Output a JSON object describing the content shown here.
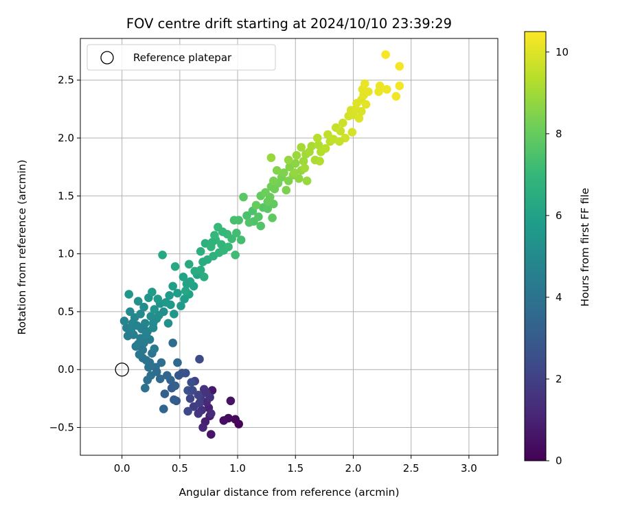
{
  "chart_data": {
    "type": "scatter",
    "title": "FOV centre drift starting at 2024/10/10 23:39:29",
    "xlabel": "Angular distance from reference (arcmin)",
    "ylabel": "Rotation from reference (arcmin)",
    "xlim": [
      -0.36,
      3.25
    ],
    "ylim": [
      -0.74,
      2.86
    ],
    "xticks": [
      0.0,
      0.5,
      1.0,
      1.5,
      2.0,
      2.5,
      3.0
    ],
    "xtick_labels": [
      "0.0",
      "0.5",
      "1.0",
      "1.5",
      "2.0",
      "2.5",
      "3.0"
    ],
    "yticks": [
      -0.5,
      0.0,
      0.5,
      1.0,
      1.5,
      2.0,
      2.5
    ],
    "ytick_labels": [
      "−0.5",
      "0.0",
      "0.5",
      "1.0",
      "1.5",
      "2.0",
      "2.5"
    ],
    "grid": true,
    "legend": {
      "position": "top-left",
      "entries": [
        {
          "label": "Reference platepar",
          "marker": "open-circle",
          "color": "#000000"
        }
      ]
    },
    "reference_point": {
      "x": 0.0,
      "y": 0.0
    },
    "colorbar": {
      "label": "Hours from first FF file",
      "colormap": "viridis",
      "range": [
        0,
        10.5
      ],
      "ticks": [
        0,
        2,
        4,
        6,
        8,
        10
      ],
      "tick_labels": [
        "0",
        "2",
        "4",
        "6",
        "8",
        "10"
      ]
    },
    "series": [
      {
        "color_by": "hours",
        "points": [
          [
            1.01,
            -0.47,
            0.1
          ],
          [
            0.98,
            -0.43,
            0.2
          ],
          [
            0.92,
            -0.42,
            0.3
          ],
          [
            0.88,
            -0.44,
            0.4
          ],
          [
            0.94,
            -0.27,
            0.5
          ],
          [
            0.77,
            -0.56,
            0.6
          ],
          [
            0.78,
            -0.18,
            0.7
          ],
          [
            0.76,
            -0.4,
            0.8
          ],
          [
            0.72,
            -0.45,
            0.9
          ],
          [
            0.75,
            -0.33,
            1.0
          ],
          [
            0.7,
            -0.5,
            1.1
          ],
          [
            0.73,
            -0.28,
            1.2
          ],
          [
            0.77,
            -0.38,
            1.3
          ],
          [
            0.69,
            -0.35,
            1.4
          ],
          [
            0.76,
            -0.24,
            1.5
          ],
          [
            0.71,
            -0.17,
            1.6
          ],
          [
            0.66,
            -0.38,
            1.7
          ],
          [
            0.68,
            -0.24,
            1.8
          ],
          [
            0.62,
            -0.32,
            1.9
          ],
          [
            0.63,
            -0.1,
            2.0
          ],
          [
            0.66,
            -0.22,
            2.1
          ],
          [
            0.59,
            -0.25,
            2.2
          ],
          [
            0.57,
            -0.36,
            2.3
          ],
          [
            0.67,
            0.09,
            2.4
          ],
          [
            0.6,
            -0.11,
            2.5
          ],
          [
            0.55,
            -0.03,
            2.6
          ],
          [
            0.57,
            -0.18,
            2.7
          ],
          [
            0.49,
            -0.05,
            2.8
          ],
          [
            0.47,
            -0.27,
            2.9
          ],
          [
            0.43,
            -0.16,
            3.0
          ],
          [
            0.45,
            -0.26,
            3.1
          ],
          [
            0.37,
            -0.21,
            3.2
          ],
          [
            0.42,
            -0.09,
            3.3
          ],
          [
            0.36,
            -0.34,
            3.4
          ],
          [
            0.48,
            0.06,
            3.5
          ],
          [
            0.33,
            -0.08,
            3.6
          ],
          [
            0.44,
            0.23,
            3.7
          ],
          [
            0.29,
            0.02,
            3.75
          ],
          [
            0.34,
            0.06,
            3.8
          ],
          [
            0.22,
            -0.09,
            3.85
          ],
          [
            0.25,
            -0.05,
            3.9
          ],
          [
            0.2,
            -0.16,
            3.95
          ],
          [
            0.23,
            0.02,
            4.0
          ],
          [
            0.18,
            0.1,
            4.05
          ],
          [
            0.26,
            0.14,
            4.1
          ],
          [
            0.21,
            0.08,
            4.15
          ],
          [
            0.15,
            0.13,
            4.2
          ],
          [
            0.28,
            0.18,
            4.25
          ],
          [
            0.12,
            0.2,
            4.3
          ],
          [
            0.24,
            0.26,
            4.35
          ],
          [
            0.19,
            0.23,
            4.4
          ],
          [
            0.1,
            0.3,
            4.45
          ],
          [
            0.16,
            0.27,
            4.5
          ],
          [
            0.04,
            0.36,
            4.55
          ],
          [
            0.22,
            0.33,
            4.6
          ],
          [
            0.13,
            0.38,
            4.65
          ],
          [
            0.08,
            0.33,
            4.7
          ],
          [
            0.02,
            0.42,
            4.75
          ],
          [
            0.2,
            0.4,
            4.8
          ],
          [
            0.11,
            0.45,
            4.85
          ],
          [
            0.27,
            0.36,
            4.9
          ],
          [
            0.16,
            0.48,
            4.95
          ],
          [
            0.07,
            0.5,
            5.0
          ],
          [
            0.3,
            0.44,
            5.05
          ],
          [
            0.19,
            0.54,
            5.1
          ],
          [
            0.36,
            0.5,
            5.15
          ],
          [
            0.25,
            0.46,
            5.2
          ],
          [
            0.4,
            0.4,
            5.25
          ],
          [
            0.14,
            0.59,
            5.3
          ],
          [
            0.33,
            0.57,
            5.35
          ],
          [
            0.28,
            0.52,
            5.4
          ],
          [
            0.23,
            0.62,
            5.45
          ],
          [
            0.06,
            0.65,
            5.5
          ],
          [
            0.45,
            0.48,
            5.55
          ],
          [
            0.42,
            0.56,
            5.6
          ],
          [
            0.31,
            0.61,
            5.65
          ],
          [
            0.51,
            0.55,
            5.7
          ],
          [
            0.26,
            0.67,
            5.75
          ],
          [
            0.48,
            0.66,
            5.8
          ],
          [
            0.54,
            0.61,
            5.85
          ],
          [
            0.44,
            0.72,
            5.9
          ],
          [
            0.58,
            0.65,
            5.95
          ],
          [
            0.62,
            0.72,
            6.0
          ],
          [
            0.53,
            0.8,
            6.05
          ],
          [
            0.65,
            0.82,
            6.1
          ],
          [
            0.59,
            0.76,
            6.15
          ],
          [
            0.55,
            0.68,
            6.2
          ],
          [
            0.35,
            0.99,
            6.25
          ],
          [
            0.46,
            0.89,
            6.3
          ],
          [
            0.58,
            0.91,
            6.35
          ],
          [
            0.63,
            0.85,
            6.4
          ],
          [
            0.68,
            0.86,
            6.45
          ],
          [
            0.71,
            0.8,
            6.5
          ],
          [
            0.74,
            0.95,
            6.55
          ],
          [
            0.68,
            1.02,
            6.6
          ],
          [
            0.72,
            1.09,
            6.65
          ],
          [
            0.79,
            0.98,
            6.7
          ],
          [
            0.84,
            1.01,
            6.75
          ],
          [
            0.77,
            1.06,
            6.8
          ],
          [
            0.81,
            1.12,
            6.85
          ],
          [
            0.86,
            1.08,
            6.9
          ],
          [
            0.88,
            1.03,
            6.95
          ],
          [
            0.8,
            1.16,
            7.0
          ],
          [
            0.83,
            1.23,
            7.05
          ],
          [
            0.91,
            1.17,
            7.1
          ],
          [
            0.95,
            1.13,
            7.15
          ],
          [
            0.98,
            0.99,
            7.2
          ],
          [
            0.99,
            1.18,
            7.25
          ],
          [
            1.03,
            1.12,
            7.3
          ],
          [
            0.97,
            1.29,
            7.35
          ],
          [
            1.01,
            1.29,
            7.4
          ],
          [
            1.08,
            1.33,
            7.45
          ],
          [
            1.13,
            1.37,
            7.5
          ],
          [
            1.14,
            1.28,
            7.55
          ],
          [
            1.2,
            1.24,
            7.6
          ],
          [
            1.18,
            1.32,
            7.65
          ],
          [
            1.22,
            1.4,
            7.7
          ],
          [
            1.26,
            1.39,
            7.75
          ],
          [
            1.05,
            1.49,
            7.8
          ],
          [
            1.3,
            1.31,
            7.85
          ],
          [
            1.31,
            1.43,
            7.9
          ],
          [
            1.2,
            1.5,
            7.95
          ],
          [
            1.26,
            1.45,
            8.0
          ],
          [
            1.28,
            1.49,
            8.05
          ],
          [
            1.24,
            1.53,
            8.1
          ],
          [
            1.32,
            1.56,
            8.15
          ],
          [
            1.29,
            1.58,
            8.2
          ],
          [
            1.35,
            1.61,
            8.25
          ],
          [
            1.38,
            1.66,
            8.3
          ],
          [
            1.31,
            1.63,
            8.35
          ],
          [
            1.44,
            1.63,
            8.4
          ],
          [
            1.4,
            1.7,
            8.45
          ],
          [
            1.34,
            1.72,
            8.5
          ],
          [
            1.45,
            1.75,
            8.55
          ],
          [
            1.48,
            1.68,
            8.6
          ],
          [
            1.5,
            1.78,
            8.65
          ],
          [
            1.53,
            1.65,
            8.7
          ],
          [
            1.55,
            1.72,
            8.75
          ],
          [
            1.44,
            1.81,
            8.8
          ],
          [
            1.29,
            1.83,
            8.85
          ],
          [
            1.51,
            1.85,
            8.9
          ],
          [
            1.57,
            1.8,
            8.95
          ],
          [
            1.59,
            1.86,
            9.0
          ],
          [
            1.55,
            1.92,
            9.05
          ],
          [
            1.62,
            1.88,
            9.1
          ],
          [
            1.64,
            1.93,
            9.15
          ],
          [
            1.67,
            1.81,
            9.2
          ],
          [
            1.7,
            1.94,
            9.25
          ],
          [
            1.72,
            1.88,
            9.3
          ],
          [
            1.69,
            2.0,
            9.35
          ],
          [
            1.76,
            1.91,
            9.4
          ],
          [
            1.8,
            1.97,
            9.45
          ],
          [
            1.78,
            2.03,
            9.5
          ],
          [
            1.83,
            1.99,
            9.55
          ],
          [
            1.85,
            2.09,
            9.6
          ],
          [
            1.89,
            2.06,
            9.65
          ],
          [
            1.91,
            2.13,
            9.7
          ],
          [
            1.93,
            2.0,
            9.75
          ],
          [
            1.96,
            2.19,
            9.8
          ],
          [
            1.98,
            2.24,
            9.85
          ],
          [
            2.0,
            2.2,
            9.9
          ],
          [
            2.02,
            2.25,
            9.93
          ],
          [
            2.05,
            2.17,
            9.96
          ],
          [
            2.03,
            2.3,
            9.99
          ],
          [
            2.07,
            2.33,
            10.02
          ],
          [
            2.09,
            2.37,
            10.05
          ],
          [
            2.11,
            2.29,
            10.08
          ],
          [
            2.08,
            2.42,
            10.11
          ],
          [
            2.13,
            2.4,
            10.14
          ],
          [
            2.1,
            2.47,
            10.17
          ],
          [
            2.22,
            2.4,
            10.2
          ],
          [
            2.23,
            2.45,
            10.23
          ],
          [
            2.29,
            2.42,
            10.26
          ],
          [
            2.37,
            2.36,
            10.29
          ],
          [
            2.4,
            2.45,
            10.32
          ],
          [
            2.4,
            2.62,
            10.35
          ],
          [
            2.28,
            2.72,
            10.38
          ],
          [
            2.07,
            2.23,
            9.92
          ],
          [
            1.99,
            2.05,
            9.85
          ],
          [
            1.88,
            1.97,
            9.6
          ],
          [
            1.71,
            1.8,
            9.25
          ],
          [
            1.58,
            1.74,
            9.02
          ],
          [
            1.49,
            1.7,
            8.8
          ],
          [
            1.6,
            1.63,
            8.86
          ],
          [
            1.42,
            1.55,
            8.42
          ],
          [
            1.16,
            1.42,
            8.0
          ],
          [
            1.1,
            1.27,
            7.6
          ],
          [
            0.92,
            1.06,
            7.05
          ],
          [
            0.87,
            1.19,
            7.0
          ],
          [
            0.78,
            1.1,
            6.75
          ],
          [
            0.7,
            0.93,
            6.48
          ],
          [
            0.56,
            0.74,
            6.1
          ],
          [
            0.41,
            0.64,
            5.72
          ],
          [
            0.38,
            0.58,
            5.62
          ],
          [
            0.32,
            0.47,
            5.22
          ],
          [
            0.27,
            0.4,
            4.98
          ],
          [
            0.21,
            0.3,
            4.65
          ],
          [
            0.17,
            0.35,
            4.58
          ],
          [
            0.09,
            0.4,
            4.76
          ],
          [
            0.05,
            0.29,
            4.5
          ],
          [
            0.14,
            0.22,
            4.34
          ],
          [
            0.18,
            0.17,
            4.18
          ],
          [
            0.24,
            0.06,
            3.96
          ],
          [
            0.3,
            -0.02,
            3.72
          ],
          [
            0.39,
            -0.05,
            3.48
          ],
          [
            0.46,
            -0.14,
            3.18
          ],
          [
            0.52,
            -0.03,
            2.74
          ],
          [
            0.61,
            -0.18,
            2.32
          ],
          [
            0.67,
            -0.29,
            1.92
          ],
          [
            0.73,
            -0.2,
            1.56
          ]
        ]
      }
    ]
  }
}
